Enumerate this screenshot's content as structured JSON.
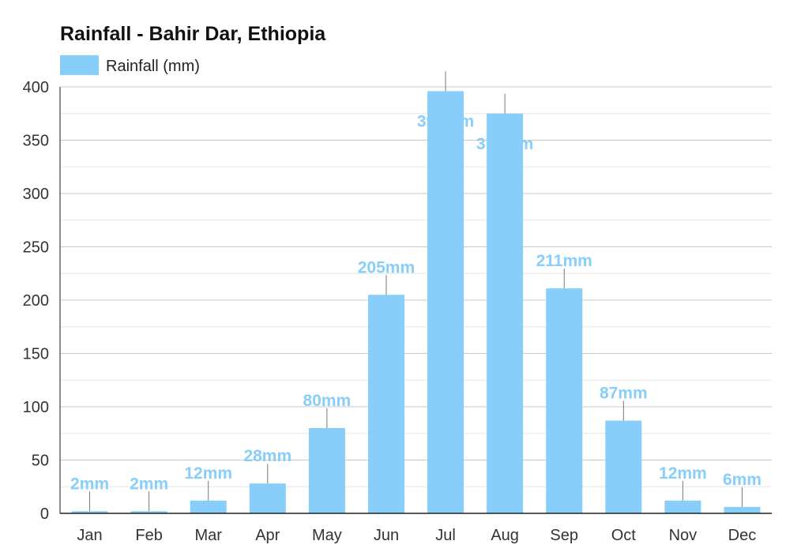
{
  "chart_data": {
    "type": "bar",
    "title": "Rainfall - Bahir Dar, Ethiopia",
    "legend": {
      "label": "Rainfall (mm)",
      "placement": "top-left"
    },
    "categories": [
      "Jan",
      "Feb",
      "Mar",
      "Apr",
      "May",
      "Jun",
      "Jul",
      "Aug",
      "Sep",
      "Oct",
      "Nov",
      "Dec"
    ],
    "series": [
      {
        "name": "Rainfall (mm)",
        "values": [
          2,
          2,
          12,
          28,
          80,
          205,
          396,
          375,
          211,
          87,
          12,
          6
        ],
        "labels": [
          "2mm",
          "2mm",
          "12mm",
          "28mm",
          "80mm",
          "205mm",
          "396mm",
          "375mm",
          "211mm",
          "87mm",
          "12mm",
          "6mm"
        ]
      }
    ],
    "y_ticks": [
      0,
      50,
      100,
      150,
      200,
      250,
      300,
      350,
      400
    ],
    "ylim": [
      0,
      400
    ],
    "grid": true,
    "colors": {
      "bar": "#87cefa",
      "label": "#87cefa",
      "axis": "#333333",
      "grid": "#cccccc"
    }
  }
}
